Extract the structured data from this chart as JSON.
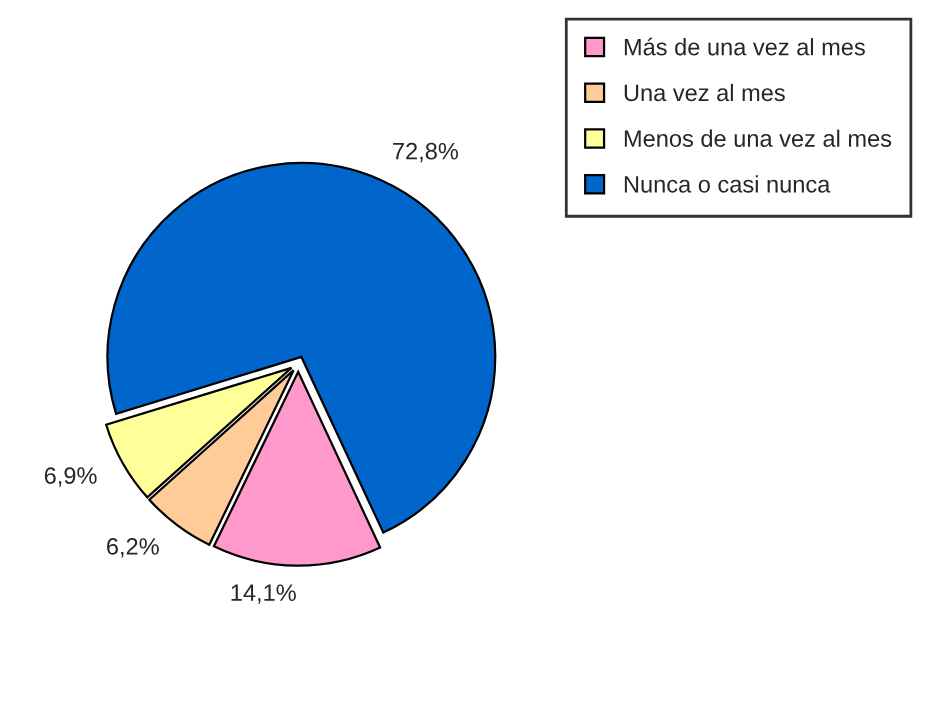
{
  "chart_data": {
    "type": "pie",
    "categories": [
      "Más de una vez al mes",
      "Una vez al mes",
      "Menos de una vez al mes",
      "Nunca o casi nunca"
    ],
    "values": [
      14.1,
      6.2,
      6.9,
      72.8
    ],
    "colors": [
      "#ff99cc",
      "#ffcc99",
      "#ffff99",
      "#0066cc"
    ],
    "value_labels": [
      "14,1%",
      "6,2%",
      "6,9%",
      "72,8%"
    ],
    "legend": "top right"
  }
}
